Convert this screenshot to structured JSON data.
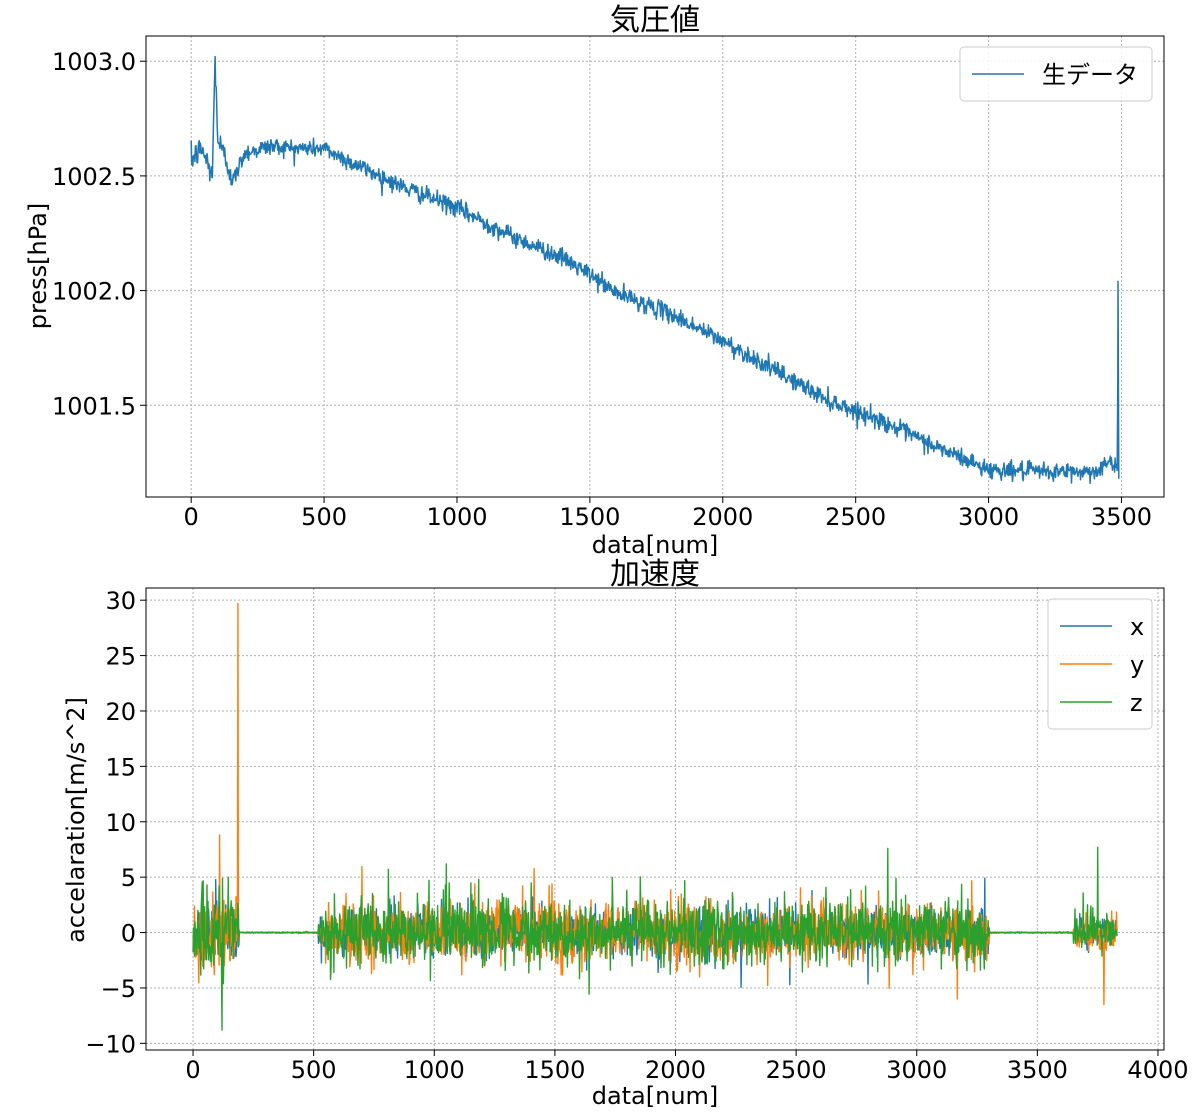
{
  "chart_data": [
    {
      "type": "line",
      "title": "気圧値",
      "xlabel": "data[num]",
      "ylabel": "press[hPa]",
      "xlim": [
        -170,
        3660
      ],
      "ylim": [
        1001.1,
        1003.11
      ],
      "xticks": [
        0,
        500,
        1000,
        1500,
        2000,
        2500,
        3000,
        3500
      ],
      "yticks": [
        1001.5,
        1002.0,
        1002.5,
        1003.0
      ],
      "ytick_labels": [
        "1001.5",
        "1002.0",
        "1002.5",
        "1003.0"
      ],
      "grid": true,
      "legend": "upper-right",
      "series": [
        {
          "name": "生データ",
          "color": "#1f77b4",
          "noise": 0.035,
          "x": [
            0,
            40,
            80,
            90,
            100,
            120,
            160,
            200,
            300,
            400,
            500,
            600,
            800,
            1000,
            1200,
            1400,
            1500,
            1600,
            1800,
            2000,
            2200,
            2400,
            2600,
            2800,
            2900,
            3000,
            3200,
            3400,
            3450,
            3485,
            3487,
            3490
          ],
          "y": [
            1002.57,
            1002.62,
            1002.5,
            1003.02,
            1002.66,
            1002.6,
            1002.48,
            1002.6,
            1002.63,
            1002.62,
            1002.62,
            1002.56,
            1002.45,
            1002.36,
            1002.24,
            1002.14,
            1002.07,
            1001.99,
            1001.9,
            1001.78,
            1001.65,
            1001.52,
            1001.43,
            1001.32,
            1001.27,
            1001.22,
            1001.21,
            1001.21,
            1001.25,
            1001.22,
            1002.04,
            1001.2
          ]
        }
      ]
    },
    {
      "type": "line",
      "title": "加速度",
      "xlabel": "data[num]",
      "ylabel": "accelaration[m/s^2]",
      "xlim": [
        -195,
        4025
      ],
      "ylim": [
        -10.6,
        31.1
      ],
      "xticks": [
        0,
        500,
        1000,
        1500,
        2000,
        2500,
        3000,
        3500,
        4000
      ],
      "yticks": [
        -10,
        -5,
        0,
        5,
        10,
        15,
        20,
        25,
        30
      ],
      "ytick_labels": [
        "−10",
        "−5",
        "0",
        "5",
        "10",
        "15",
        "20",
        "25",
        "30"
      ],
      "grid": true,
      "legend": "upper-right",
      "length": 3830,
      "active_segments": [
        {
          "start": 0,
          "end": 190,
          "amp": 3.2
        },
        {
          "start": 520,
          "end": 3300,
          "amp": 2.4
        },
        {
          "start": 3650,
          "end": 3830,
          "amp": 1.6
        }
      ],
      "series": [
        {
          "name": "x",
          "color": "#1f77b4",
          "weight": 0.8
        },
        {
          "name": "y",
          "color": "#ff7f0e",
          "weight": 1.0,
          "spikes": [
            {
              "x": 185,
              "y": 29.7
            },
            {
              "x": 110,
              "y": 8.8
            },
            {
              "x": 3775,
              "y": -6.5
            }
          ]
        },
        {
          "name": "z",
          "color": "#2ca02c",
          "weight": 1.1,
          "spikes": [
            {
              "x": 120,
              "y": -8.8
            },
            {
              "x": 2880,
              "y": 7.6
            },
            {
              "x": 3750,
              "y": 7.7
            },
            {
              "x": 1050,
              "y": 6.2
            }
          ]
        }
      ]
    }
  ]
}
